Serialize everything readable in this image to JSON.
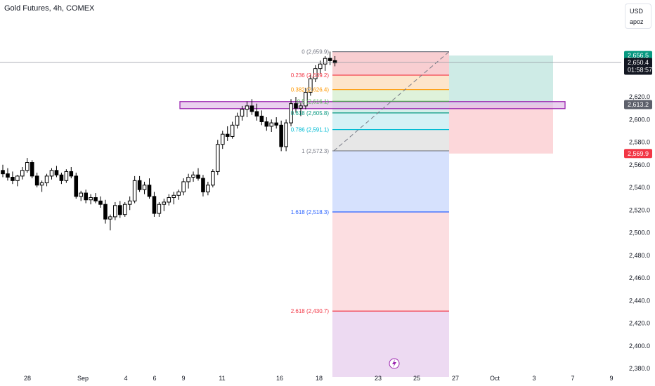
{
  "header": {
    "title": "Gold Futures, 4h, COMEX"
  },
  "scale_box": {
    "currency": "USD",
    "mode": "apoz"
  },
  "tags": {
    "price_top": "2,656.5",
    "last_price": "2,650.4",
    "countdown": "01:58:57",
    "zone_mid": "2,613.2",
    "stop": "2,569.9"
  },
  "colors": {
    "up": "#000000",
    "down": "#000000",
    "tag_green": "#089981",
    "tag_red": "#f23645",
    "tag_dark": "#131722",
    "tag_gray": "#5d606b",
    "zone_fill": "#e1bee7",
    "zone_stroke": "#9c27b0"
  },
  "chart_data": {
    "type": "candlestick",
    "title": "Gold Futures, 4h, COMEX",
    "xlabel": "",
    "ylabel": "",
    "ylim": [
      2380,
      2690
    ],
    "y_ticks": [
      "2,380.0",
      "2,400.0",
      "2,420.0",
      "2,440.0",
      "2,460.0",
      "2,480.0",
      "2,500.0",
      "2,520.0",
      "2,540.0",
      "2,560.0",
      "2,580.0",
      "2,600.0",
      "2,620.0"
    ],
    "x_ticks": [
      "28",
      "Sep",
      "4",
      "6",
      "9",
      "11",
      "16",
      "18",
      "23",
      "25",
      "27",
      "Oct",
      "3",
      "7",
      "9"
    ],
    "candles": [
      [
        2555,
        2560,
        2549,
        2552
      ],
      [
        2552,
        2557,
        2546,
        2549
      ],
      [
        2549,
        2554,
        2543,
        2546
      ],
      [
        2546,
        2551,
        2541,
        2550
      ],
      [
        2550,
        2558,
        2547,
        2555
      ],
      [
        2555,
        2566,
        2553,
        2562
      ],
      [
        2562,
        2564,
        2548,
        2550
      ],
      [
        2550,
        2553,
        2540,
        2542
      ],
      [
        2542,
        2546,
        2536,
        2544
      ],
      [
        2544,
        2552,
        2541,
        2550
      ],
      [
        2550,
        2557,
        2547,
        2555
      ],
      [
        2555,
        2559,
        2549,
        2551
      ],
      [
        2551,
        2553,
        2543,
        2546
      ],
      [
        2546,
        2556,
        2544,
        2554
      ],
      [
        2554,
        2558,
        2548,
        2550
      ],
      [
        2550,
        2553,
        2530,
        2532
      ],
      [
        2532,
        2537,
        2528,
        2535
      ],
      [
        2535,
        2538,
        2526,
        2529
      ],
      [
        2529,
        2534,
        2525,
        2531
      ],
      [
        2531,
        2535,
        2526,
        2528
      ],
      [
        2528,
        2532,
        2522,
        2525
      ],
      [
        2525,
        2529,
        2508,
        2512
      ],
      [
        2512,
        2516,
        2502,
        2514
      ],
      [
        2514,
        2527,
        2511,
        2524
      ],
      [
        2524,
        2528,
        2513,
        2516
      ],
      [
        2516,
        2527,
        2514,
        2525
      ],
      [
        2525,
        2532,
        2520,
        2528
      ],
      [
        2528,
        2550,
        2526,
        2546
      ],
      [
        2546,
        2550,
        2536,
        2538
      ],
      [
        2538,
        2545,
        2534,
        2542
      ],
      [
        2542,
        2548,
        2530,
        2532
      ],
      [
        2532,
        2536,
        2514,
        2517
      ],
      [
        2517,
        2527,
        2514,
        2525
      ],
      [
        2525,
        2530,
        2519,
        2527
      ],
      [
        2527,
        2534,
        2524,
        2531
      ],
      [
        2531,
        2536,
        2525,
        2533
      ],
      [
        2533,
        2538,
        2529,
        2536
      ],
      [
        2536,
        2548,
        2533,
        2545
      ],
      [
        2545,
        2552,
        2539,
        2549
      ],
      [
        2549,
        2554,
        2545,
        2551
      ],
      [
        2551,
        2557,
        2546,
        2548
      ],
      [
        2548,
        2551,
        2532,
        2536
      ],
      [
        2536,
        2545,
        2533,
        2542
      ],
      [
        2542,
        2556,
        2540,
        2554
      ],
      [
        2554,
        2582,
        2551,
        2578
      ],
      [
        2578,
        2590,
        2574,
        2587
      ],
      [
        2587,
        2594,
        2581,
        2585
      ],
      [
        2585,
        2598,
        2583,
        2595
      ],
      [
        2595,
        2606,
        2592,
        2603
      ],
      [
        2603,
        2612,
        2599,
        2609
      ],
      [
        2609,
        2616,
        2602,
        2612
      ],
      [
        2612,
        2618,
        2604,
        2607
      ],
      [
        2607,
        2614,
        2599,
        2603
      ],
      [
        2603,
        2608,
        2595,
        2598
      ],
      [
        2598,
        2602,
        2590,
        2594
      ],
      [
        2594,
        2600,
        2589,
        2597
      ],
      [
        2597,
        2602,
        2592,
        2595
      ],
      [
        2595,
        2599,
        2572,
        2576
      ],
      [
        2576,
        2600,
        2572,
        2597
      ],
      [
        2597,
        2618,
        2594,
        2614
      ],
      [
        2614,
        2620,
        2606,
        2610
      ],
      [
        2610,
        2615,
        2603,
        2612
      ],
      [
        2612,
        2628,
        2609,
        2624
      ],
      [
        2624,
        2640,
        2621,
        2636
      ],
      [
        2636,
        2648,
        2633,
        2645
      ],
      [
        2645,
        2652,
        2640,
        2649
      ],
      [
        2649,
        2656,
        2643,
        2654
      ],
      [
        2654,
        2660,
        2648,
        2652
      ],
      [
        2652,
        2656,
        2647,
        2650
      ]
    ],
    "fib": {
      "from": 2572.3,
      "to": 2659.9,
      "levels": [
        {
          "label": "0 (2,659.9)",
          "price": 2659.9,
          "color": "#787b86",
          "fill": "#f7c6c9"
        },
        {
          "label": "0.236 (2,639.2)",
          "price": 2639.2,
          "color": "#f23645",
          "fill": "#fde0c2"
        },
        {
          "label": "0.382 (2,626.4)",
          "price": 2626.4,
          "color": "#ff9800",
          "fill": "#d9f0d4"
        },
        {
          "label": "0.5 (2,616.1)",
          "price": 2616.1,
          "color": "#4caf50",
          "fill": "#cdece6"
        },
        {
          "label": "0.618 (2,605.8)",
          "price": 2605.8,
          "color": "#089981",
          "fill": "#cdeff3"
        },
        {
          "label": "0.786 (2,591.1)",
          "price": 2591.1,
          "color": "#00bcd4",
          "fill": "#e3e3e3"
        },
        {
          "label": "1 (2,572.3)",
          "price": 2572.3,
          "color": "#787b86",
          "fill": "#cfdcfd"
        },
        {
          "label": "1.618 (2,518.3)",
          "price": 2518.3,
          "color": "#2962ff",
          "fill": "#fcd8dc"
        },
        {
          "label": "2.618 (2,430.7)",
          "price": 2430.7,
          "color": "#f23645",
          "fill": "#ead3f0"
        }
      ],
      "bottom": 2380
    },
    "position": {
      "entry": 2613.2,
      "target": 2656.5,
      "stop": 2569.9
    },
    "zone": {
      "top": 2615.8,
      "bottom": 2609.6
    },
    "last_price": 2650.4
  }
}
